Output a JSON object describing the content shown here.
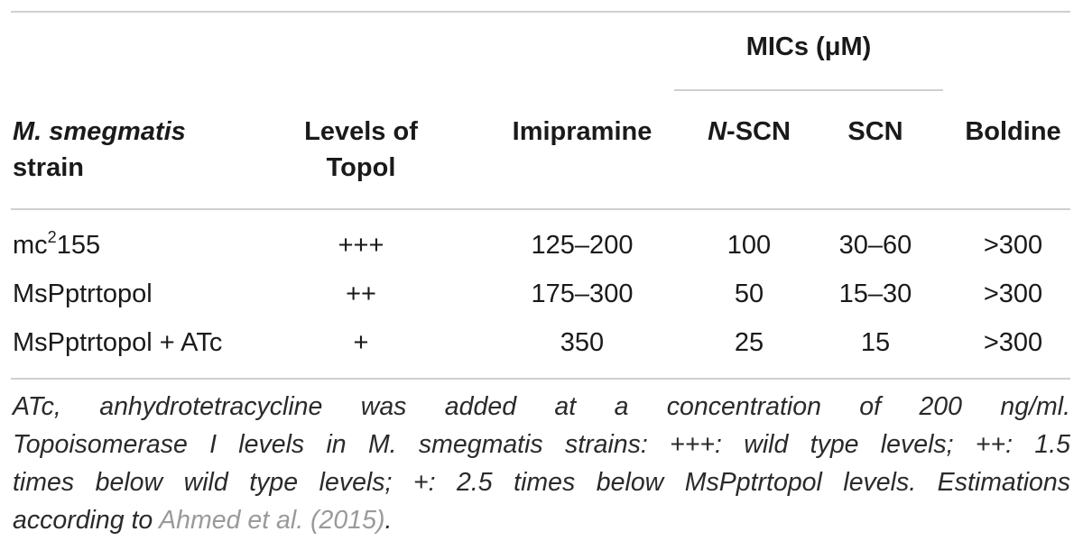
{
  "table": {
    "mic_group_header": "MICs (μM)",
    "headers": {
      "strain_line1": "M. smegmatis",
      "strain_line2": "strain",
      "levels_line1": "Levels of",
      "levels_line2": "Topol",
      "imipramine": "Imipramine",
      "nscn_prefix": "N",
      "nscn_suffix": "-SCN",
      "scn": "SCN",
      "boldine": "Boldine"
    },
    "rows": [
      {
        "strain_base": "mc",
        "strain_sup": "2",
        "strain_tail": "155",
        "levels": "+++",
        "imipramine": "125–200",
        "nscn": "100",
        "scn": "30–60",
        "boldine": ">300"
      },
      {
        "strain_base": "MsPptrtopol",
        "strain_sup": "",
        "strain_tail": "",
        "levels": "++",
        "imipramine": "175–300",
        "nscn": "50",
        "scn": "15–30",
        "boldine": ">300"
      },
      {
        "strain_base": "MsPptrtopol + ATc",
        "strain_sup": "",
        "strain_tail": "",
        "levels": "+",
        "imipramine": "350",
        "nscn": "25",
        "scn": "15",
        "boldine": ">300"
      }
    ]
  },
  "footnote": {
    "line1": "ATc, anhydrotetracycline was added at a concentration of 200 ng/ml.",
    "line2": "Topoisomerase I levels in M. smegmatis strains: +++: wild type levels; ++: 1.5",
    "line3": "times below wild type levels; +: 2.5 times below MsPptrtopol levels. Estimations",
    "line4_prefix": "according to ",
    "line4_ref": "Ahmed et al. (2015)",
    "line4_suffix": "."
  }
}
